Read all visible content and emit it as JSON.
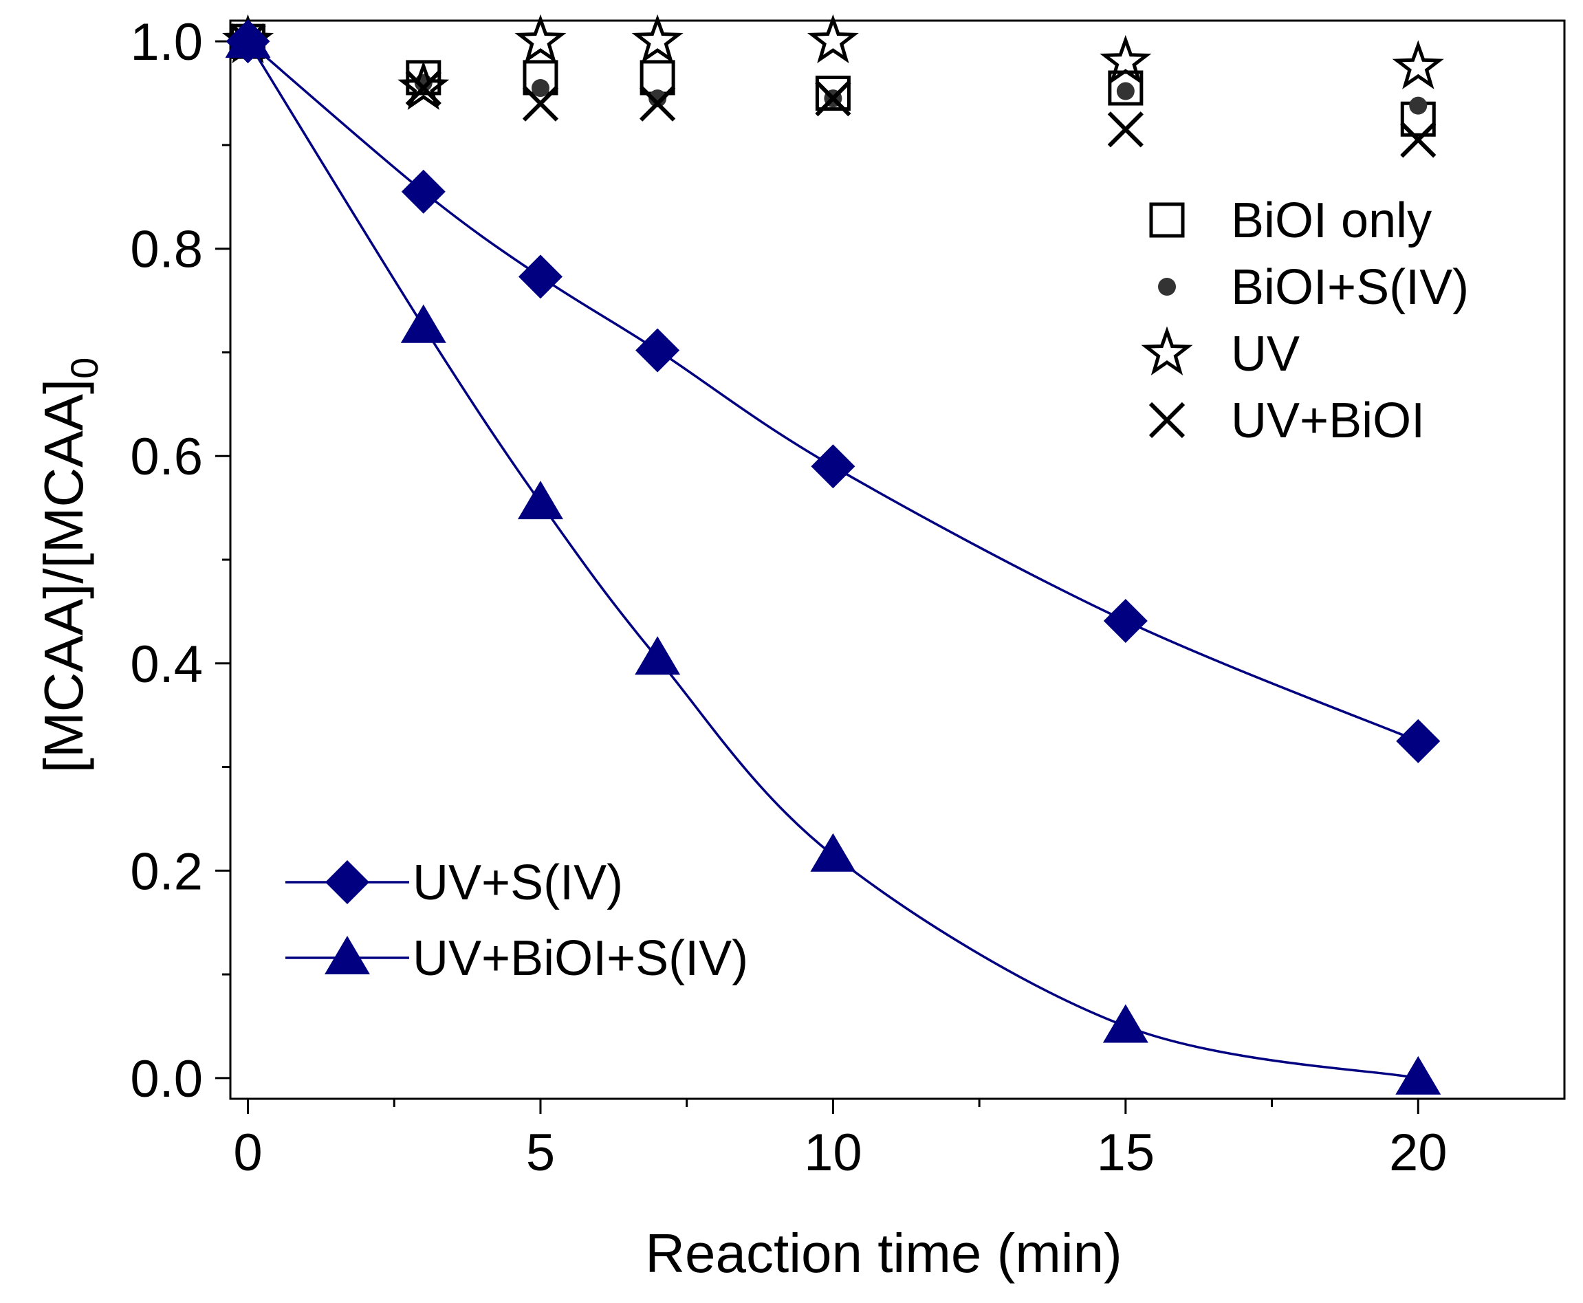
{
  "chart_data": {
    "type": "line",
    "title": "",
    "xlabel": "Reaction time (min)",
    "ylabel_main": "[MCAA]/[MCAA]",
    "ylabel_sub": "0",
    "xlim": [
      -0.3,
      22.5
    ],
    "ylim": [
      -0.02,
      1.02
    ],
    "x_ticks": [
      0,
      5,
      10,
      15,
      20
    ],
    "x_tick_labels": [
      "0",
      "5",
      "10",
      "15",
      "20"
    ],
    "x_minor_ticks": [
      2.5,
      7.5,
      12.5,
      17.5
    ],
    "y_ticks": [
      0.0,
      0.2,
      0.4,
      0.6,
      0.8,
      1.0
    ],
    "y_tick_labels": [
      "0.0",
      "0.2",
      "0.4",
      "0.6",
      "0.8",
      "1.0"
    ],
    "y_minor_ticks": [
      0.1,
      0.3,
      0.5,
      0.7,
      0.9
    ],
    "grid": false,
    "legend_positions": [
      "top-right",
      "bottom-left"
    ],
    "series": [
      {
        "name": "BiOI only",
        "marker": "open-square",
        "line": false,
        "group": "top-right",
        "color": "#000000",
        "x": [
          0,
          3,
          5,
          7,
          10,
          15,
          20
        ],
        "y": [
          1.0,
          0.965,
          0.965,
          0.965,
          0.95,
          0.955,
          0.925
        ]
      },
      {
        "name": "BiOI+S(IV)",
        "marker": "dot",
        "line": false,
        "group": "top-right",
        "color": "#333333",
        "x": [
          0,
          3,
          5,
          7,
          10,
          15,
          20
        ],
        "y": [
          1.0,
          0.96,
          0.955,
          0.945,
          0.945,
          0.952,
          0.938
        ]
      },
      {
        "name": "UV",
        "marker": "open-star",
        "line": false,
        "group": "top-right",
        "color": "#000000",
        "x": [
          0,
          3,
          5,
          7,
          10,
          15,
          20
        ],
        "y": [
          1.0,
          0.955,
          1.0,
          1.0,
          1.0,
          0.98,
          0.975
        ]
      },
      {
        "name": "UV+BiOI",
        "marker": "cross",
        "line": false,
        "group": "top-right",
        "color": "#000000",
        "x": [
          0,
          3,
          5,
          7,
          10,
          15,
          20
        ],
        "y": [
          1.0,
          0.955,
          0.94,
          0.94,
          0.945,
          0.915,
          0.905
        ]
      },
      {
        "name": "UV+S(IV)",
        "marker": "filled-diamond",
        "line": true,
        "group": "bottom-left",
        "color": "#000080",
        "x": [
          0,
          3,
          5,
          7,
          10,
          15,
          20
        ],
        "y": [
          1.0,
          0.855,
          0.773,
          0.702,
          0.59,
          0.441,
          0.325
        ]
      },
      {
        "name": "UV+BiOI+S(IV)",
        "marker": "filled-triangle",
        "line": true,
        "group": "bottom-left",
        "color": "#000080",
        "x": [
          0,
          3,
          5,
          7,
          10,
          15,
          20
        ],
        "y": [
          1.0,
          0.725,
          0.555,
          0.405,
          0.215,
          0.05,
          0.0
        ]
      }
    ]
  }
}
